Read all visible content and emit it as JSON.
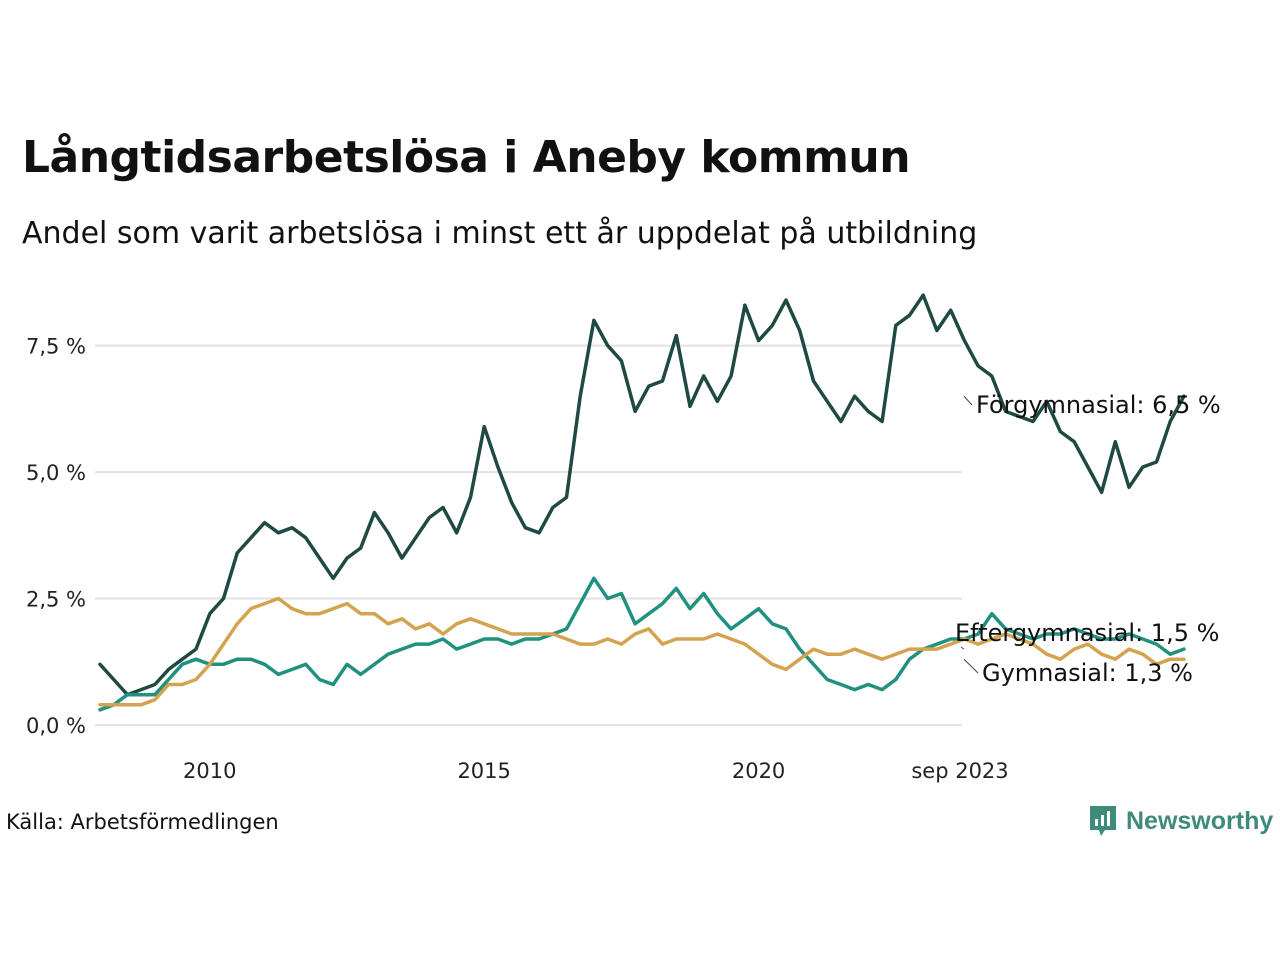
{
  "title": "Långtidsarbetslösa i Aneby kommun",
  "subtitle": "Andel som varit arbetslösa i minst ett år uppdelat på utbildning",
  "source": "Källa: Arbetsförmedlingen",
  "brand": {
    "name": "Newsworthy",
    "icon": "newsworthy-logo-icon",
    "color": "#3e8b7c"
  },
  "chart_data": {
    "type": "line",
    "title": "Långtidsarbetslösa i Aneby kommun",
    "subtitle": "Andel som varit arbetslösa i minst ett år uppdelat på utbildning",
    "xlabel": "",
    "ylabel": "",
    "x_start": 2008.0,
    "x_step_months": 3,
    "xlim": [
      2008.0,
      2023.67
    ],
    "ylim": [
      0,
      8.6
    ],
    "grid": true,
    "yticks": [
      {
        "value": 0,
        "label": "0,0 %"
      },
      {
        "value": 2.5,
        "label": "2,5 %"
      },
      {
        "value": 5,
        "label": "5,0 %"
      },
      {
        "value": 7.5,
        "label": "7,5 %"
      }
    ],
    "xticks": [
      {
        "value": 2010,
        "label": "2010"
      },
      {
        "value": 2015,
        "label": "2015"
      },
      {
        "value": 2020,
        "label": "2020"
      },
      {
        "value": 2023.67,
        "label": "sep 2023"
      }
    ],
    "series": [
      {
        "name": "Förgymnasial",
        "label": "Förgymnasial: 6,5 %",
        "color": "#1f4a44",
        "values": [
          1.2,
          0.9,
          0.6,
          0.7,
          0.8,
          1.1,
          1.3,
          1.5,
          2.2,
          2.5,
          3.4,
          3.7,
          4.0,
          3.8,
          3.9,
          3.7,
          3.3,
          2.9,
          3.3,
          3.5,
          4.2,
          3.8,
          3.3,
          3.7,
          4.1,
          4.3,
          3.8,
          4.5,
          5.9,
          5.1,
          4.4,
          3.9,
          3.8,
          4.3,
          4.5,
          6.5,
          8.0,
          7.5,
          7.2,
          6.2,
          6.7,
          6.8,
          7.7,
          6.3,
          6.9,
          6.4,
          6.9,
          8.3,
          7.6,
          7.9,
          8.4,
          7.8,
          6.8,
          6.4,
          6.0,
          6.5,
          6.2,
          6.0,
          7.9,
          8.1,
          8.5,
          7.8,
          8.2,
          7.6,
          7.1,
          6.9,
          6.2,
          6.1,
          6.0,
          6.4,
          5.8,
          5.6,
          5.1,
          4.6,
          5.6,
          4.7,
          5.1,
          5.2,
          6.0,
          6.5
        ]
      },
      {
        "name": "Eftergymnasial",
        "label": "Eftergymnasial: 1,5 %",
        "color": "#21917f",
        "values": [
          0.3,
          0.4,
          0.6,
          0.6,
          0.6,
          0.9,
          1.2,
          1.3,
          1.2,
          1.2,
          1.3,
          1.3,
          1.2,
          1.0,
          1.1,
          1.2,
          0.9,
          0.8,
          1.2,
          1.0,
          1.2,
          1.4,
          1.5,
          1.6,
          1.6,
          1.7,
          1.5,
          1.6,
          1.7,
          1.7,
          1.6,
          1.7,
          1.7,
          1.8,
          1.9,
          2.4,
          2.9,
          2.5,
          2.6,
          2.0,
          2.2,
          2.4,
          2.7,
          2.3,
          2.6,
          2.2,
          1.9,
          2.1,
          2.3,
          2.0,
          1.9,
          1.5,
          1.2,
          0.9,
          0.8,
          0.7,
          0.8,
          0.7,
          0.9,
          1.3,
          1.5,
          1.6,
          1.7,
          1.7,
          1.8,
          2.2,
          1.9,
          1.8,
          1.7,
          1.8,
          1.8,
          1.9,
          1.8,
          1.7,
          1.7,
          1.8,
          1.7,
          1.6,
          1.4,
          1.5
        ]
      },
      {
        "name": "Gymnasial",
        "label": "Gymnasial: 1,3 %",
        "color": "#d3a34f",
        "values": [
          0.4,
          0.4,
          0.4,
          0.4,
          0.5,
          0.8,
          0.8,
          0.9,
          1.2,
          1.6,
          2.0,
          2.3,
          2.4,
          2.5,
          2.3,
          2.2,
          2.2,
          2.3,
          2.4,
          2.2,
          2.2,
          2.0,
          2.1,
          1.9,
          2.0,
          1.8,
          2.0,
          2.1,
          2.0,
          1.9,
          1.8,
          1.8,
          1.8,
          1.8,
          1.7,
          1.6,
          1.6,
          1.7,
          1.6,
          1.8,
          1.9,
          1.6,
          1.7,
          1.7,
          1.7,
          1.8,
          1.7,
          1.6,
          1.4,
          1.2,
          1.1,
          1.3,
          1.5,
          1.4,
          1.4,
          1.5,
          1.4,
          1.3,
          1.4,
          1.5,
          1.5,
          1.5,
          1.6,
          1.7,
          1.6,
          1.7,
          1.8,
          1.7,
          1.6,
          1.4,
          1.3,
          1.5,
          1.6,
          1.4,
          1.3,
          1.5,
          1.4,
          1.2,
          1.3,
          1.3
        ]
      }
    ]
  }
}
